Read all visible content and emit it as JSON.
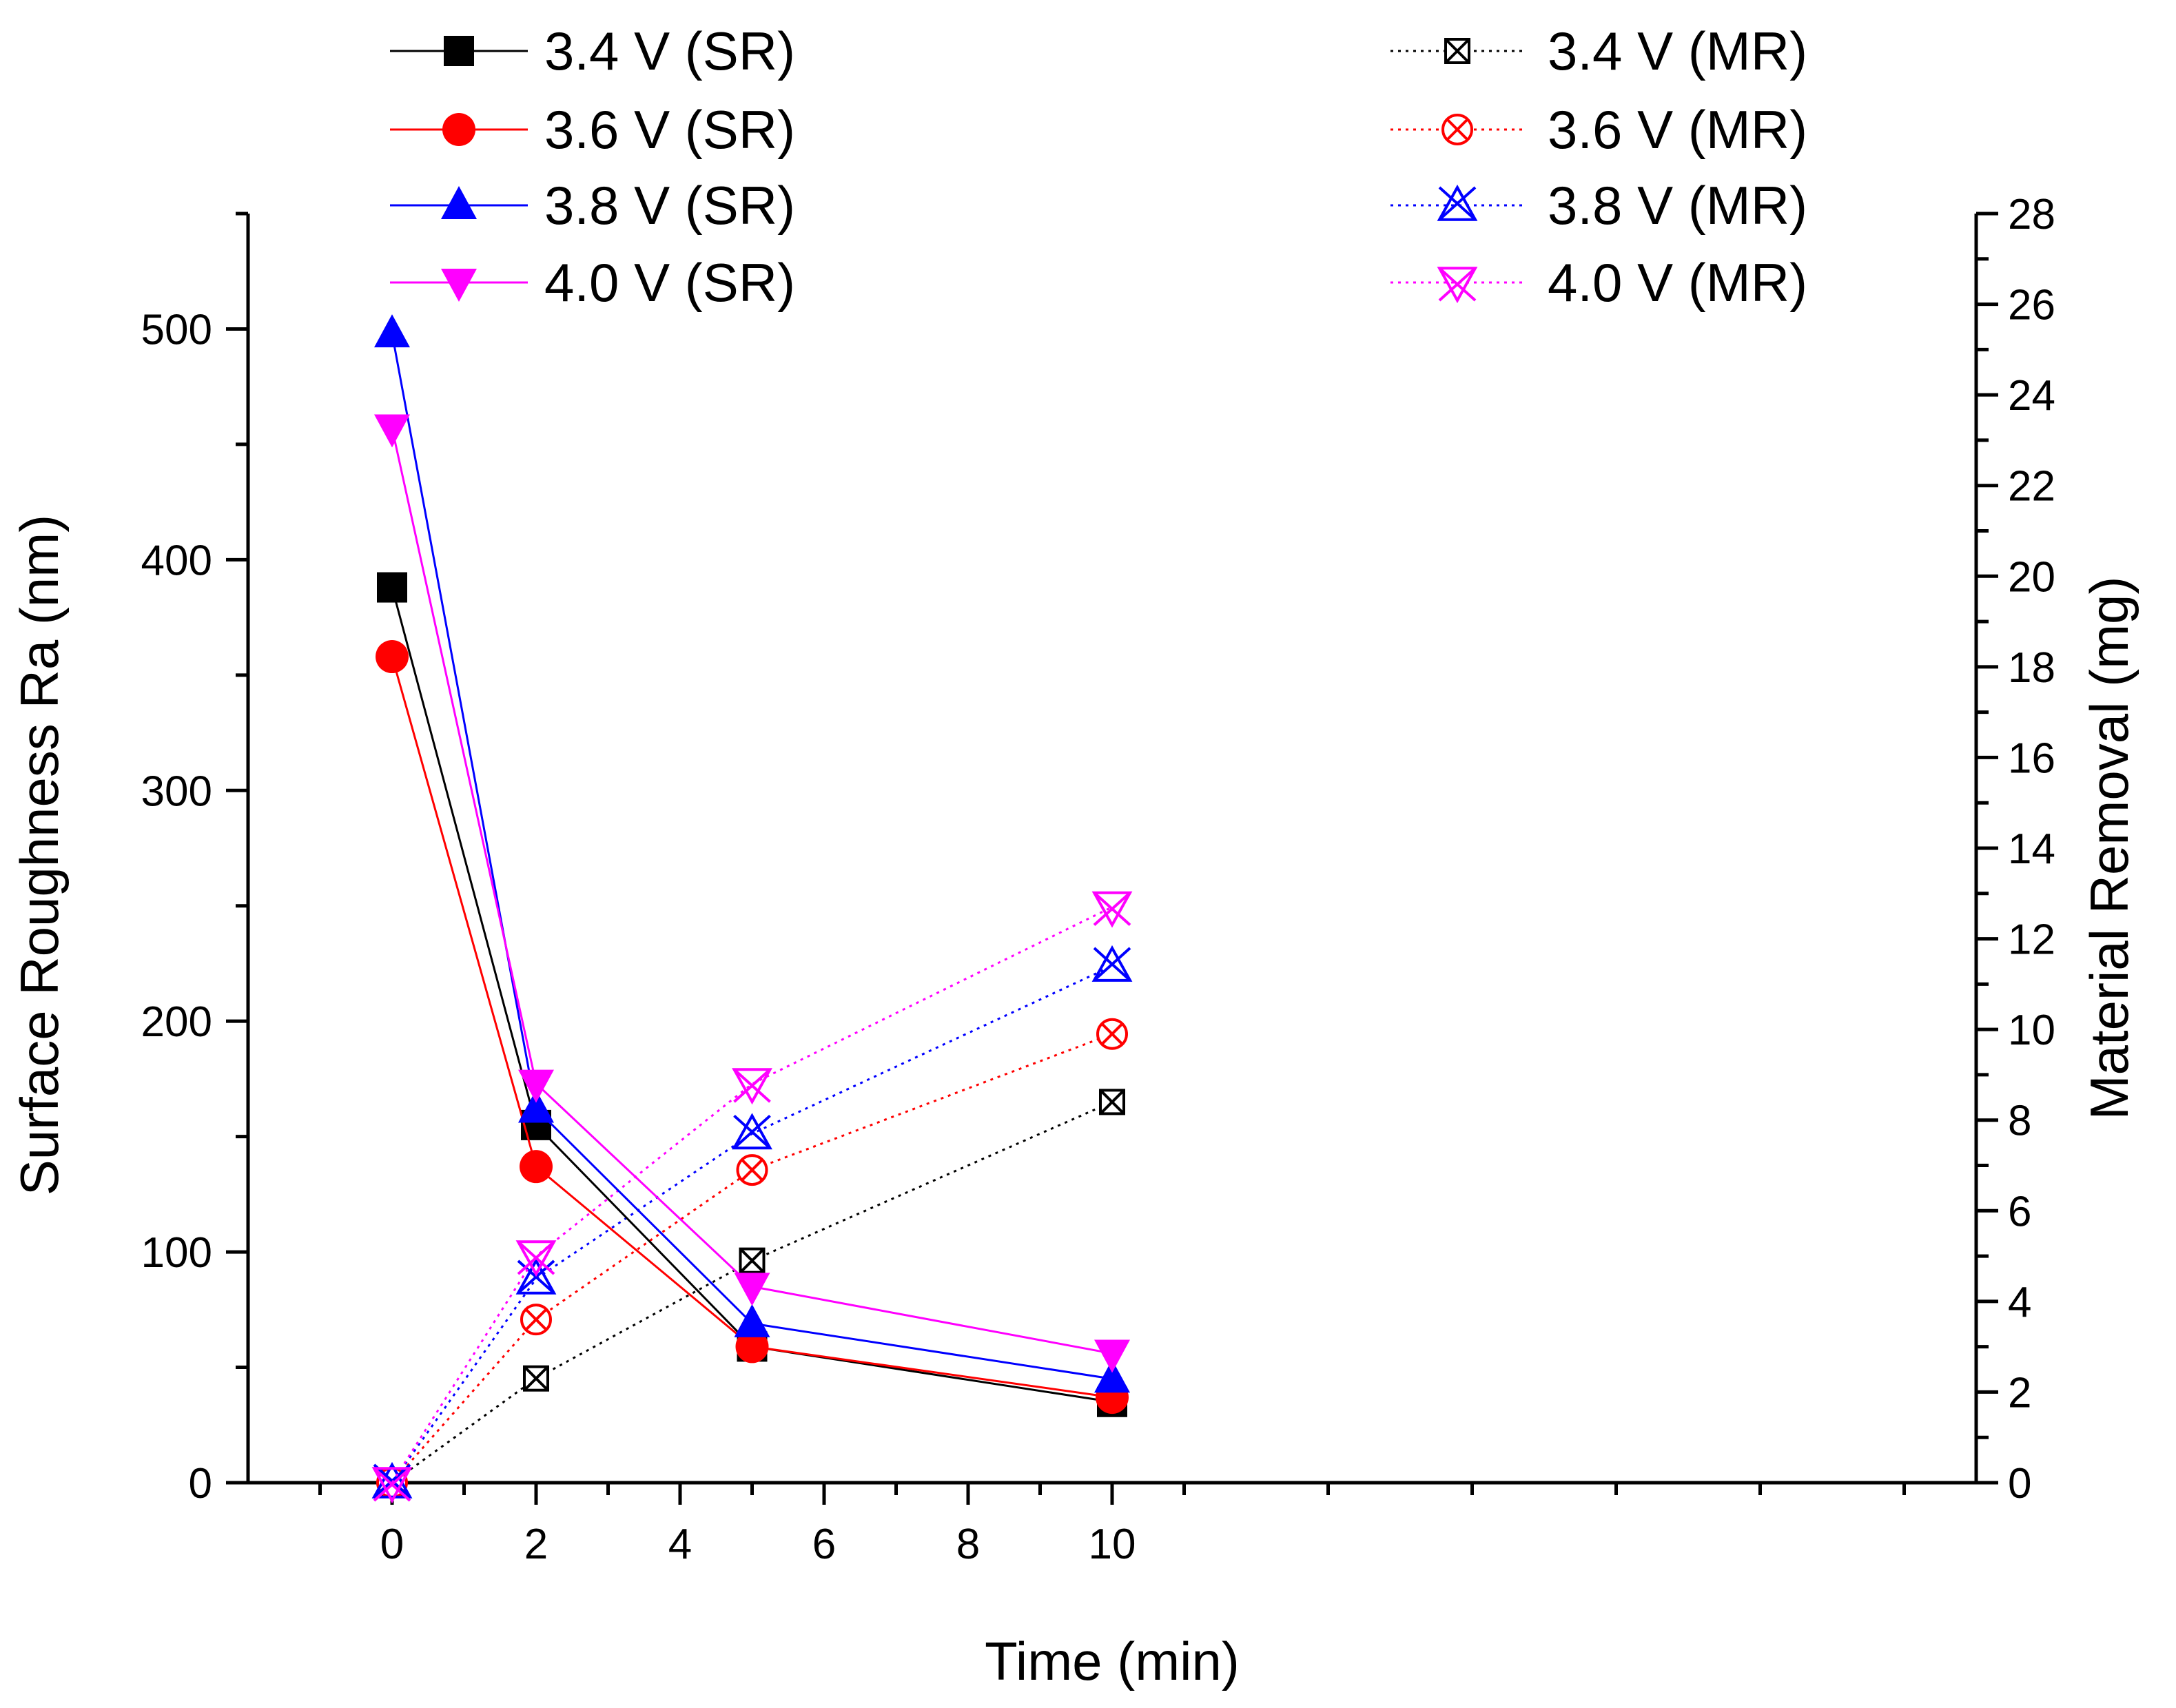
{
  "chart_data": {
    "type": "line",
    "title": "",
    "xlabel": "Time (min)",
    "ylabel": "Surface Roughness Ra (nm)",
    "y2label": "Material Removal (mg)",
    "x": [
      0,
      2,
      5,
      10
    ],
    "xlim": [
      -2,
      22
    ],
    "ylim": [
      0,
      550
    ],
    "y2lim": [
      0,
      28
    ],
    "xticks": [
      "0",
      "2",
      "4",
      "6",
      "8",
      "10"
    ],
    "yticks": [
      "0",
      "100",
      "200",
      "300",
      "400",
      "500"
    ],
    "y2ticks": [
      "0",
      "2",
      "4",
      "6",
      "8",
      "10",
      "12",
      "14",
      "16",
      "18",
      "20",
      "22",
      "24",
      "26",
      "28"
    ],
    "grid": false,
    "legend_position": "top",
    "series": [
      {
        "name": "3.4 V (SR)",
        "axis": "left",
        "color": "#000000",
        "marker": "square",
        "style": "solid",
        "values": [
          388,
          155,
          59,
          35
        ]
      },
      {
        "name": "3.6 V (SR)",
        "axis": "left",
        "color": "#ff0000",
        "marker": "circle",
        "style": "solid",
        "values": [
          358,
          137,
          59,
          37
        ]
      },
      {
        "name": "3.8 V (SR)",
        "axis": "left",
        "color": "#0000ff",
        "marker": "triangle-up",
        "style": "solid",
        "values": [
          498,
          162,
          69,
          45
        ]
      },
      {
        "name": "4.0 V (SR)",
        "axis": "left",
        "color": "#ff00ff",
        "marker": "triangle-down",
        "style": "solid",
        "values": [
          457,
          173,
          85,
          56
        ]
      },
      {
        "name": "3.4 V (MR)",
        "axis": "right",
        "color": "#000000",
        "marker": "square-x",
        "style": "dotted",
        "values": [
          0,
          2.3,
          4.9,
          8.4
        ]
      },
      {
        "name": "3.6 V (MR)",
        "axis": "right",
        "color": "#ff0000",
        "marker": "circle-x",
        "style": "dotted",
        "values": [
          0,
          3.6,
          6.9,
          9.9
        ]
      },
      {
        "name": "3.8 V (MR)",
        "axis": "right",
        "color": "#0000ff",
        "marker": "triangle-x",
        "style": "dotted",
        "values": [
          0,
          4.5,
          7.7,
          11.4
        ]
      },
      {
        "name": "4.0 V (MR)",
        "axis": "right",
        "color": "#ff00ff",
        "marker": "triangle-down-x",
        "style": "dotted",
        "values": [
          0,
          5.0,
          8.8,
          12.7
        ]
      }
    ]
  }
}
